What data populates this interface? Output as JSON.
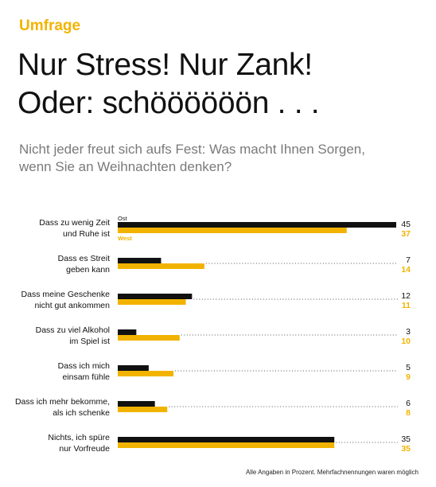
{
  "header": {
    "kicker": "Umfrage",
    "title_line1": "Nur Stress! Nur Zank!",
    "title_line2": "Oder: schöööööön . . .",
    "subtitle_line1": "Nicht jeder freut sich aufs Fest: Was macht Ihnen Sorgen,",
    "subtitle_line2": "wenn Sie an Weihnachten denken?"
  },
  "footnote": "Alle Angaben in Prozent. Mehrfachnennungen waren möglich",
  "colors": {
    "ost": "#111111",
    "west": "#f2b300",
    "dots": "#555555"
  },
  "chart_data": {
    "type": "bar",
    "orientation": "horizontal",
    "unit": "%",
    "xlim": [
      0,
      45
    ],
    "categories": [
      [
        "Dass zu wenig Zeit",
        "und Ruhe ist"
      ],
      [
        "Dass es Streit",
        "geben kann"
      ],
      [
        "Dass meine Geschenke",
        "nicht gut ankommen"
      ],
      [
        "Dass zu viel Alkohol",
        "im Spiel ist"
      ],
      [
        "Dass ich mich",
        "einsam fühle"
      ],
      [
        "Dass ich mehr bekomme,",
        "als ich schenke"
      ],
      [
        "Nichts, ich spüre",
        "nur Vorfreude"
      ]
    ],
    "series": [
      {
        "name": "Ost",
        "color": "#111111",
        "values": [
          45,
          7,
          12,
          3,
          5,
          6,
          35
        ]
      },
      {
        "name": "West",
        "color": "#f2b300",
        "values": [
          37,
          14,
          11,
          10,
          9,
          8,
          35
        ]
      }
    ]
  }
}
